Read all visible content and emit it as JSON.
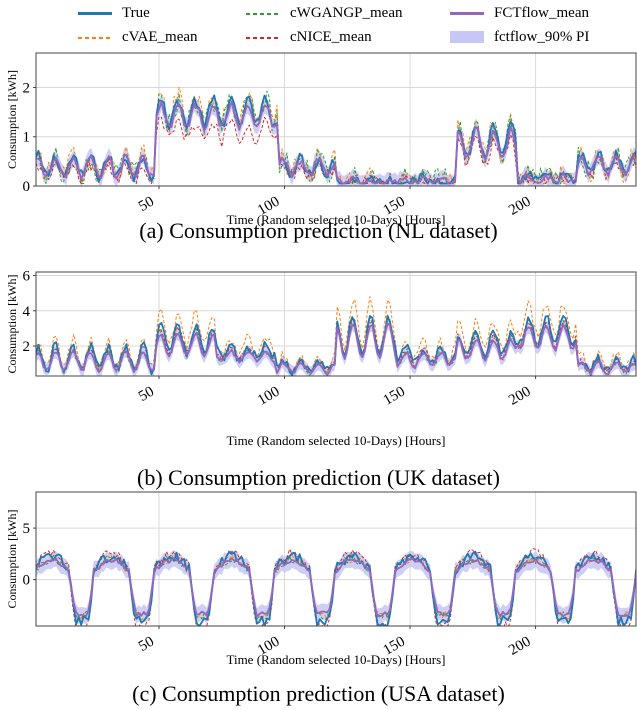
{
  "legend": {
    "items": [
      {
        "label": "True",
        "color": "#1f77b4",
        "style": "solid"
      },
      {
        "label": "cVAE_mean",
        "color": "#ff7f0e",
        "style": "dashed"
      },
      {
        "label": "cWGANGP_mean",
        "color": "#2ca02c",
        "style": "dashed"
      },
      {
        "label": "cNICE_mean",
        "color": "#d62728",
        "style": "dashed"
      },
      {
        "label": "FCTflow_mean",
        "color": "#9467bd",
        "style": "solid"
      },
      {
        "label": "fctflow_90% PI",
        "color": "#c7c7f5",
        "style": "fill"
      }
    ]
  },
  "captions": {
    "a": "(a) Consumption prediction (NL dataset)",
    "b": "(b) Consumption prediction (UK dataset)",
    "c": "(c) Consumption prediction (USA dataset)"
  },
  "chart_data": [
    {
      "type": "line",
      "panel": "a",
      "xlabel": "Time (Random selected 10-Days) [Hours]",
      "ylabel": "Consumption [kWh]",
      "xlim": [
        1,
        240
      ],
      "ylim": [
        0,
        2.7
      ],
      "xticks": [
        50,
        100,
        150,
        200
      ],
      "yticks": [
        0,
        1,
        2
      ],
      "grid": true,
      "segments": [
        {
          "start": 1,
          "end": 48,
          "level": 0.4,
          "amp": 0.2
        },
        {
          "start": 49,
          "end": 97,
          "level": 1.5,
          "amp": 0.25
        },
        {
          "start": 98,
          "end": 120,
          "level": 0.4,
          "amp": 0.15
        },
        {
          "start": 121,
          "end": 168,
          "level": 0.1,
          "amp": 0.05
        },
        {
          "start": 169,
          "end": 192,
          "level": 0.9,
          "amp": 0.3
        },
        {
          "start": 193,
          "end": 216,
          "level": 0.15,
          "amp": 0.08
        },
        {
          "start": 217,
          "end": 240,
          "level": 0.45,
          "amp": 0.2
        }
      ],
      "series": [
        {
          "name": "True",
          "scale": 1.0,
          "noise": 0.25
        },
        {
          "name": "cVAE_mean",
          "scale": 1.05,
          "noise": 0.45
        },
        {
          "name": "cWGANGP_mean",
          "scale": 1.0,
          "noise": 0.5
        },
        {
          "name": "cNICE_mean",
          "scale": 0.75,
          "noise": 0.3
        },
        {
          "name": "FCTflow_mean",
          "scale": 0.95,
          "noise": 0.15
        }
      ]
    },
    {
      "type": "line",
      "panel": "b",
      "xlabel": "Time (Random selected 10-Days) [Hours]",
      "ylabel": "Consumption [kWh]",
      "xlim": [
        1,
        240
      ],
      "ylim": [
        0.3,
        6.2
      ],
      "xticks": [
        50,
        100,
        150,
        200
      ],
      "yticks": [
        2,
        4,
        6
      ],
      "grid": true,
      "segments": [
        {
          "start": 1,
          "end": 48,
          "level": 1.2,
          "amp": 0.6
        },
        {
          "start": 49,
          "end": 72,
          "level": 2.2,
          "amp": 0.7
        },
        {
          "start": 73,
          "end": 96,
          "level": 1.5,
          "amp": 0.3
        },
        {
          "start": 97,
          "end": 120,
          "level": 0.8,
          "amp": 0.3
        },
        {
          "start": 121,
          "end": 144,
          "level": 2.4,
          "amp": 1.0
        },
        {
          "start": 145,
          "end": 168,
          "level": 1.3,
          "amp": 0.4
        },
        {
          "start": 169,
          "end": 192,
          "level": 1.9,
          "amp": 0.6
        },
        {
          "start": 193,
          "end": 216,
          "level": 2.6,
          "amp": 0.7
        },
        {
          "start": 217,
          "end": 240,
          "level": 0.8,
          "amp": 0.3
        }
      ],
      "series": [
        {
          "name": "True",
          "scale": 1.1,
          "noise": 0.6
        },
        {
          "name": "cVAE_mean",
          "scale": 1.35,
          "noise": 0.6
        },
        {
          "name": "cWGANGP_mean",
          "scale": 1.0,
          "noise": 0.5
        },
        {
          "name": "cNICE_mean",
          "scale": 1.05,
          "noise": 0.4
        },
        {
          "name": "FCTflow_mean",
          "scale": 0.95,
          "noise": 0.25
        }
      ]
    },
    {
      "type": "line",
      "panel": "c",
      "xlabel": "Time (Random selected 10-Days) [Hours]",
      "ylabel": "Consumption [kWh]",
      "xlim": [
        1,
        240
      ],
      "ylim": [
        -4.5,
        8.5
      ],
      "xticks": [
        50,
        100,
        150,
        200
      ],
      "yticks": [
        0,
        5
      ],
      "grid": true,
      "daily_cycle": {
        "period": 24,
        "high": 2.0,
        "low": -3.5
      },
      "series": [
        {
          "name": "True",
          "scale": 1.15,
          "noise": 1.0
        },
        {
          "name": "cVAE_mean",
          "scale": 1.0,
          "noise": 0.8
        },
        {
          "name": "cWGANGP_mean",
          "scale": 1.0,
          "noise": 0.9
        },
        {
          "name": "cNICE_mean",
          "scale": 1.3,
          "noise": 0.9
        },
        {
          "name": "FCTflow_mean",
          "scale": 0.95,
          "noise": 0.5
        }
      ]
    }
  ]
}
